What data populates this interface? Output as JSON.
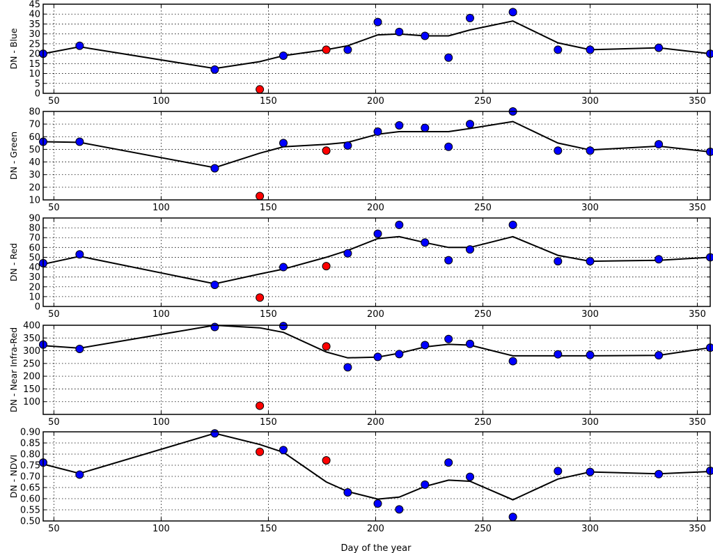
{
  "chart_data": {
    "type": "line",
    "xlabel": "Day of the year",
    "x_ticks": [
      50,
      100,
      150,
      200,
      250,
      300,
      350
    ],
    "xlim": [
      45,
      356
    ],
    "colors": {
      "normal_point": "#0000ff",
      "outlier_point": "#ff0000",
      "line": "#000000"
    },
    "grid": true,
    "panels": [
      {
        "ylabel": "DN -  Blue",
        "ylim": [
          0,
          45
        ],
        "y_ticks": [
          0,
          5,
          10,
          15,
          20,
          25,
          30,
          35,
          40,
          45
        ],
        "line": {
          "x": [
            45,
            62,
            125,
            146,
            157,
            177,
            187,
            201,
            211,
            223,
            234,
            244,
            264,
            285,
            300,
            332,
            356
          ],
          "y": [
            20,
            23.5,
            12.5,
            16,
            19,
            22,
            24,
            29.5,
            30,
            29,
            29,
            32,
            36.5,
            25.5,
            22,
            23,
            20
          ]
        },
        "blue_points": {
          "x": [
            45,
            62,
            125,
            157,
            187,
            201,
            211,
            223,
            234,
            244,
            264,
            285,
            300,
            332,
            356
          ],
          "y": [
            20,
            24,
            12,
            19,
            22,
            36,
            31,
            29,
            18,
            38,
            41,
            22,
            22,
            23,
            20
          ]
        },
        "red_points": {
          "x": [
            146,
            177
          ],
          "y": [
            2,
            22
          ]
        }
      },
      {
        "ylabel": "DN -  Green",
        "ylim": [
          10,
          80
        ],
        "y_ticks": [
          10,
          20,
          30,
          40,
          50,
          60,
          70,
          80
        ],
        "line": {
          "x": [
            45,
            62,
            125,
            146,
            157,
            177,
            187,
            201,
            211,
            223,
            234,
            244,
            264,
            285,
            300,
            332,
            356
          ],
          "y": [
            56,
            55.5,
            35.5,
            47,
            52,
            54,
            55.5,
            62,
            64,
            64,
            64,
            66.5,
            72,
            55,
            49.5,
            52.5,
            48
          ]
        },
        "blue_points": {
          "x": [
            45,
            62,
            125,
            157,
            187,
            201,
            211,
            223,
            234,
            244,
            264,
            285,
            300,
            332,
            356
          ],
          "y": [
            56,
            56,
            35,
            55,
            53,
            64,
            69,
            67,
            52,
            70,
            80,
            49,
            49,
            54,
            48
          ]
        },
        "red_points": {
          "x": [
            146,
            177
          ],
          "y": [
            13,
            49
          ]
        }
      },
      {
        "ylabel": "DN -  Red",
        "ylim": [
          0,
          90
        ],
        "y_ticks": [
          0,
          10,
          20,
          30,
          40,
          50,
          60,
          70,
          80,
          90
        ],
        "line": {
          "x": [
            45,
            62,
            125,
            146,
            157,
            177,
            187,
            201,
            211,
            223,
            234,
            244,
            264,
            285,
            300,
            332,
            356
          ],
          "y": [
            43,
            51,
            23,
            33,
            38,
            50,
            57,
            69,
            71,
            65,
            60,
            60,
            71,
            52,
            46,
            47,
            50
          ]
        },
        "blue_points": {
          "x": [
            45,
            62,
            125,
            157,
            187,
            201,
            211,
            223,
            234,
            244,
            264,
            285,
            300,
            332,
            356
          ],
          "y": [
            44,
            53,
            22,
            40,
            54,
            74,
            83,
            65,
            47,
            58,
            83,
            46,
            46,
            48,
            50
          ]
        },
        "red_points": {
          "x": [
            146,
            177
          ],
          "y": [
            9,
            41
          ]
        }
      },
      {
        "ylabel": "DN -  Near Infra-Red",
        "ylim": [
          50,
          400
        ],
        "y_ticks": [
          100,
          150,
          200,
          250,
          300,
          350,
          400
        ],
        "line": {
          "x": [
            45,
            62,
            125,
            146,
            157,
            177,
            187,
            201,
            211,
            223,
            234,
            244,
            264,
            285,
            300,
            332,
            356
          ],
          "y": [
            320,
            310,
            400,
            390,
            372,
            295,
            272,
            275,
            290,
            315,
            325,
            322,
            280,
            280,
            280,
            282,
            312
          ]
        },
        "blue_points": {
          "x": [
            45,
            62,
            125,
            157,
            187,
            201,
            211,
            223,
            234,
            244,
            264,
            285,
            300,
            332,
            356
          ],
          "y": [
            324,
            307,
            393,
            397,
            235,
            276,
            287,
            322,
            346,
            327,
            259,
            286,
            283,
            282,
            312
          ]
        },
        "red_points": {
          "x": [
            146,
            177
          ],
          "y": [
            84,
            317
          ]
        }
      },
      {
        "ylabel": "DN -  NDVI",
        "ylim": [
          0.5,
          0.9
        ],
        "y_ticks": [
          0.5,
          0.55,
          0.6,
          0.65,
          0.7,
          0.75,
          0.8,
          0.85,
          0.9
        ],
        "y_tick_labels": [
          "0.50",
          "0.55",
          "0.60",
          "0.65",
          "0.70",
          "0.75",
          "0.80",
          "0.85",
          "0.90"
        ],
        "line": {
          "x": [
            45,
            62,
            125,
            146,
            157,
            177,
            187,
            201,
            211,
            223,
            234,
            244,
            264,
            285,
            300,
            332,
            356
          ],
          "y": [
            0.755,
            0.713,
            0.893,
            0.843,
            0.808,
            0.675,
            0.632,
            0.598,
            0.607,
            0.655,
            0.683,
            0.678,
            0.595,
            0.688,
            0.72,
            0.712,
            0.722
          ]
        },
        "blue_points": {
          "x": [
            45,
            62,
            125,
            157,
            187,
            201,
            211,
            223,
            234,
            244,
            264,
            285,
            300,
            332,
            356
          ],
          "y": [
            0.762,
            0.708,
            0.893,
            0.818,
            0.628,
            0.578,
            0.552,
            0.663,
            0.762,
            0.698,
            0.518,
            0.724,
            0.72,
            0.71,
            0.725
          ]
        },
        "red_points": {
          "x": [
            146,
            177
          ],
          "y": [
            0.81,
            0.772
          ]
        }
      }
    ]
  }
}
